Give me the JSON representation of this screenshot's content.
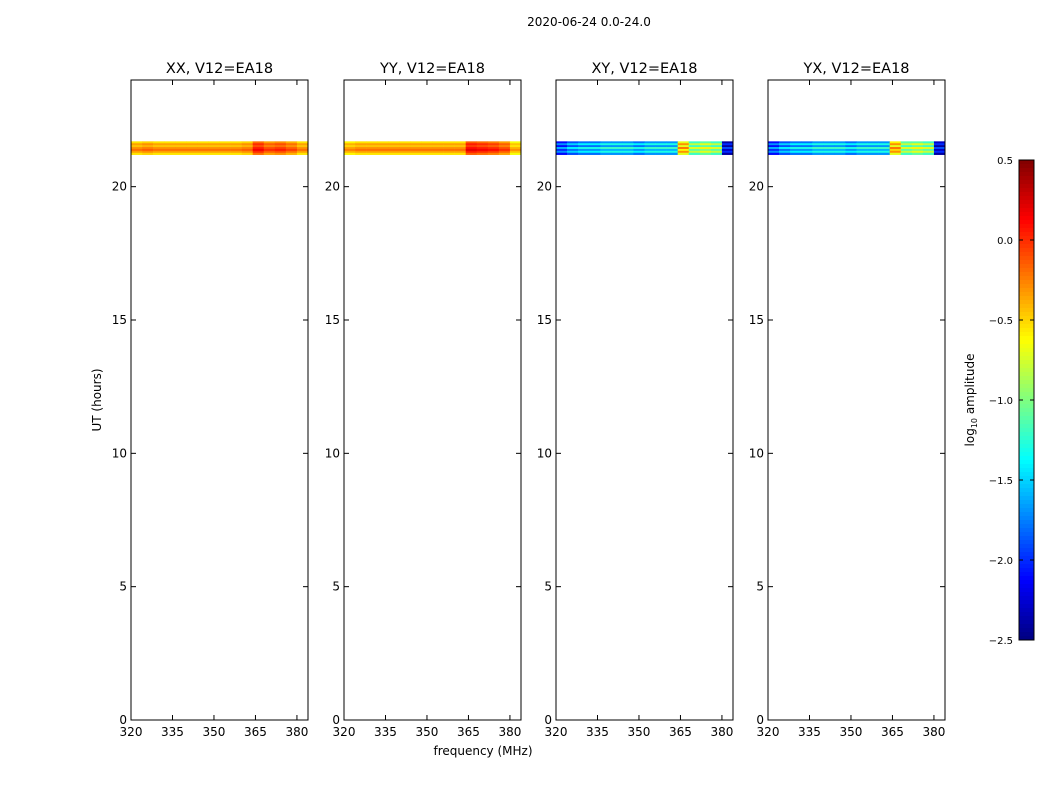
{
  "chart_data": {
    "type": "heatmap",
    "suptitle": "2020-06-24 0.0-24.0",
    "xlabel": "frequency (MHz)",
    "ylabel": "UT (hours)",
    "xlim": [
      320,
      384
    ],
    "ylim": [
      0,
      24
    ],
    "xticks": [
      320,
      335,
      350,
      365,
      380
    ],
    "yticks": [
      0,
      5,
      10,
      15,
      20
    ],
    "freq_edges": [
      320,
      384
    ],
    "time_edges": [
      21.2,
      21.7
    ],
    "rows_order": "top row = latest time",
    "colorbar": {
      "label_main": "log",
      "label_sub": "10",
      "label_rest": " amplitude",
      "vmin": -2.5,
      "vmax": 0.5,
      "ticks": [
        "0.5",
        "0.0",
        "−0.5",
        "−1.0",
        "−1.5",
        "−2.0",
        "−2.5"
      ],
      "tick_values": [
        0.5,
        0.0,
        -0.5,
        -1.0,
        -1.5,
        -2.0,
        -2.5
      ],
      "colormap": "jet"
    },
    "panels": [
      {
        "title": "XX, V12=EA18",
        "values": [
          [
            -0.55,
            -0.5,
            -0.55,
            -0.55,
            -0.55,
            -0.55,
            -0.55,
            -0.55,
            -0.55,
            -0.55,
            -0.5,
            -0.2,
            -0.35,
            -0.3,
            -0.4,
            -0.55
          ],
          [
            -0.35,
            -0.3,
            -0.35,
            -0.35,
            -0.35,
            -0.35,
            -0.35,
            -0.35,
            -0.35,
            -0.35,
            -0.3,
            0.0,
            -0.15,
            -0.1,
            -0.2,
            -0.35
          ],
          [
            -0.45,
            -0.4,
            -0.45,
            -0.45,
            -0.45,
            -0.45,
            -0.45,
            -0.45,
            -0.45,
            -0.45,
            -0.4,
            -0.1,
            -0.25,
            -0.2,
            -0.3,
            -0.45
          ],
          [
            -0.3,
            -0.25,
            -0.3,
            -0.3,
            -0.3,
            -0.3,
            -0.3,
            -0.3,
            -0.3,
            -0.3,
            -0.25,
            0.05,
            -0.1,
            -0.05,
            -0.15,
            -0.3
          ],
          [
            -0.2,
            -0.15,
            -0.2,
            -0.2,
            -0.2,
            -0.2,
            -0.2,
            -0.2,
            -0.2,
            -0.2,
            -0.15,
            0.15,
            0.0,
            0.05,
            -0.05,
            -0.2
          ],
          [
            -0.35,
            -0.3,
            -0.35,
            -0.35,
            -0.35,
            -0.35,
            -0.35,
            -0.35,
            -0.35,
            -0.35,
            -0.3,
            0.0,
            -0.15,
            -0.1,
            -0.2,
            -0.35
          ],
          [
            -0.55,
            -0.5,
            -0.55,
            -0.55,
            -0.55,
            -0.55,
            -0.55,
            -0.55,
            -0.55,
            -0.55,
            -0.5,
            -0.2,
            -0.35,
            -0.3,
            -0.4,
            -0.55
          ]
        ]
      },
      {
        "title": "YY, V12=EA18",
        "values": [
          [
            -0.6,
            -0.55,
            -0.55,
            -0.55,
            -0.55,
            -0.55,
            -0.55,
            -0.55,
            -0.55,
            -0.55,
            -0.55,
            -0.15,
            -0.2,
            -0.25,
            -0.35,
            -0.65
          ],
          [
            -0.4,
            -0.35,
            -0.35,
            -0.35,
            -0.35,
            -0.35,
            -0.35,
            -0.35,
            -0.35,
            -0.35,
            -0.35,
            0.05,
            0.0,
            -0.05,
            -0.15,
            -0.45
          ],
          [
            -0.5,
            -0.45,
            -0.45,
            -0.45,
            -0.45,
            -0.45,
            -0.45,
            -0.45,
            -0.45,
            -0.45,
            -0.45,
            -0.05,
            -0.1,
            -0.15,
            -0.25,
            -0.55
          ],
          [
            -0.35,
            -0.3,
            -0.3,
            -0.3,
            -0.3,
            -0.3,
            -0.3,
            -0.3,
            -0.3,
            -0.3,
            -0.3,
            0.1,
            0.05,
            0.0,
            -0.1,
            -0.4
          ],
          [
            -0.25,
            -0.2,
            -0.2,
            -0.2,
            -0.2,
            -0.2,
            -0.2,
            -0.2,
            -0.2,
            -0.2,
            -0.2,
            0.2,
            0.15,
            0.1,
            0.0,
            -0.3
          ],
          [
            -0.4,
            -0.35,
            -0.35,
            -0.35,
            -0.35,
            -0.35,
            -0.35,
            -0.35,
            -0.35,
            -0.35,
            -0.35,
            0.05,
            0.0,
            -0.05,
            -0.15,
            -0.45
          ],
          [
            -0.6,
            -0.55,
            -0.55,
            -0.55,
            -0.55,
            -0.55,
            -0.55,
            -0.55,
            -0.55,
            -0.55,
            -0.55,
            -0.15,
            -0.2,
            -0.25,
            -0.35,
            -0.65
          ]
        ]
      },
      {
        "title": "XY, V12=EA18",
        "values": [
          [
            -2.1,
            -1.9,
            -1.8,
            -1.8,
            -1.7,
            -1.7,
            -1.7,
            -1.8,
            -1.7,
            -1.7,
            -1.7,
            -0.7,
            -1.2,
            -1.1,
            -1.2,
            -2.4
          ],
          [
            -1.7,
            -1.5,
            -1.4,
            -1.4,
            -1.3,
            -1.3,
            -1.3,
            -1.4,
            -1.3,
            -1.3,
            -1.3,
            -0.3,
            -0.8,
            -0.7,
            -0.8,
            -2.0
          ],
          [
            -2.1,
            -1.9,
            -1.8,
            -1.8,
            -1.7,
            -1.7,
            -1.7,
            -1.8,
            -1.7,
            -1.7,
            -1.7,
            -0.7,
            -1.2,
            -1.1,
            -1.2,
            -2.4
          ],
          [
            -1.6,
            -1.4,
            -1.3,
            -1.3,
            -1.2,
            -1.2,
            -1.2,
            -1.3,
            -1.2,
            -1.2,
            -1.2,
            -0.2,
            -0.7,
            -0.6,
            -0.7,
            -1.9
          ],
          [
            -2.0,
            -1.8,
            -1.7,
            -1.7,
            -1.6,
            -1.6,
            -1.6,
            -1.7,
            -1.6,
            -1.6,
            -1.6,
            -0.6,
            -1.1,
            -1.0,
            -1.1,
            -2.3
          ],
          [
            -1.7,
            -1.5,
            -1.4,
            -1.4,
            -1.3,
            -1.3,
            -1.3,
            -1.4,
            -1.3,
            -1.3,
            -1.3,
            -0.3,
            -0.8,
            -0.7,
            -0.8,
            -2.0
          ],
          [
            -2.1,
            -1.9,
            -1.8,
            -1.8,
            -1.7,
            -1.7,
            -1.7,
            -1.8,
            -1.7,
            -1.7,
            -1.7,
            -0.7,
            -1.2,
            -1.1,
            -1.2,
            -2.4
          ]
        ]
      },
      {
        "title": "YX, V12=EA18",
        "values": [
          [
            -2.1,
            -1.9,
            -1.8,
            -1.8,
            -1.7,
            -1.7,
            -1.7,
            -1.8,
            -1.7,
            -1.7,
            -1.7,
            -0.6,
            -1.1,
            -1.1,
            -1.2,
            -2.3
          ],
          [
            -1.7,
            -1.5,
            -1.4,
            -1.4,
            -1.3,
            -1.3,
            -1.3,
            -1.4,
            -1.3,
            -1.3,
            -1.3,
            -0.3,
            -0.8,
            -0.7,
            -0.8,
            -2.0
          ],
          [
            -2.1,
            -1.9,
            -1.8,
            -1.8,
            -1.7,
            -1.7,
            -1.7,
            -1.8,
            -1.7,
            -1.7,
            -1.7,
            -0.7,
            -1.2,
            -1.1,
            -1.2,
            -2.4
          ],
          [
            -1.6,
            -1.4,
            -1.3,
            -1.3,
            -1.2,
            -1.2,
            -1.2,
            -1.3,
            -1.2,
            -1.2,
            -1.2,
            -0.2,
            -0.7,
            -0.6,
            -0.7,
            -1.9
          ],
          [
            -2.0,
            -1.8,
            -1.7,
            -1.7,
            -1.6,
            -1.6,
            -1.6,
            -1.7,
            -1.6,
            -1.6,
            -1.6,
            -0.5,
            -1.1,
            -1.0,
            -1.1,
            -2.3
          ],
          [
            -1.7,
            -1.5,
            -1.4,
            -1.4,
            -1.3,
            -1.3,
            -1.3,
            -1.4,
            -1.3,
            -1.3,
            -1.3,
            -0.3,
            -0.8,
            -0.7,
            -0.8,
            -2.0
          ],
          [
            -2.1,
            -1.9,
            -1.8,
            -1.8,
            -1.7,
            -1.7,
            -1.7,
            -1.8,
            -1.7,
            -1.7,
            -1.7,
            -0.7,
            -1.2,
            -1.1,
            -1.2,
            -2.4
          ]
        ]
      }
    ]
  }
}
